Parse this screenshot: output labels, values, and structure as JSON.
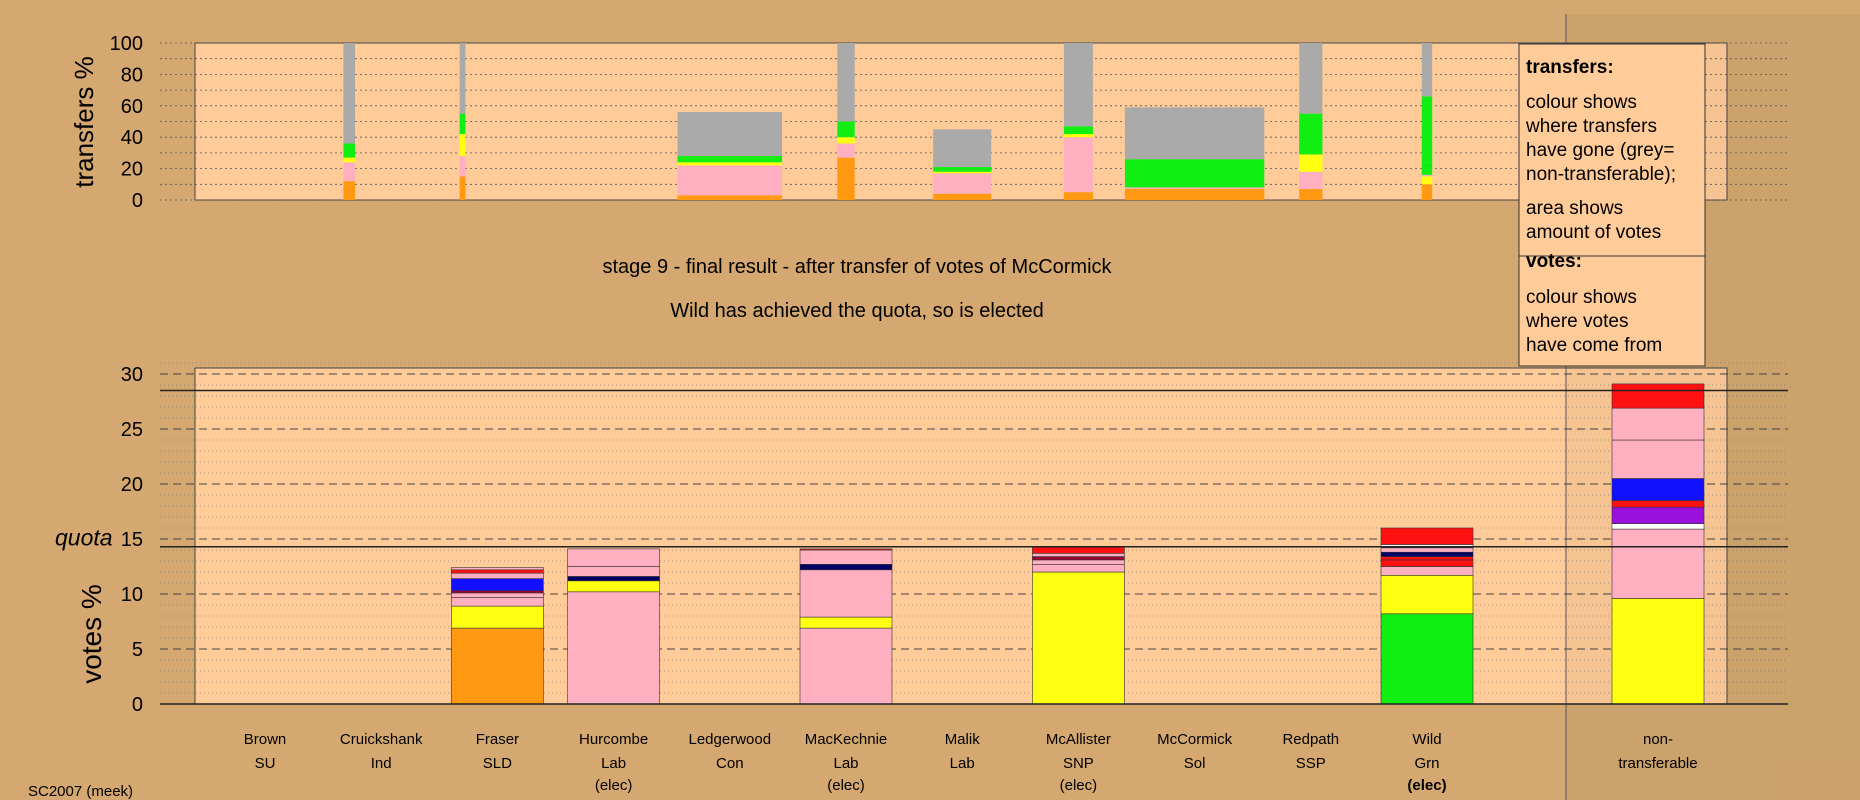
{
  "footer_id": "SC2007 (meek)",
  "stage_title": "stage 9 - final result - after transfer of votes of McCormick",
  "stage_subtitle": "Wild has achieved the quota, so is elected",
  "colors": {
    "background": "#d4a870",
    "plot_area": "#ffcc99",
    "non_transferable": "#aaaaaa",
    "orange": "#ff9911",
    "yellow": "#ffff11",
    "pink": "#ffb0c0",
    "green": "#11ee11",
    "blue": "#1111ff",
    "navy": "#000066",
    "red": "#ff1111",
    "purple": "#9911dd",
    "white": "#ffffff",
    "dark_red": "#990033"
  },
  "legend": {
    "transfers_heading": "transfers:",
    "transfers_text": [
      "colour shows",
      "where transfers",
      "have gone (grey=",
      "non-transferable);"
    ],
    "area_text": [
      "area shows",
      "amount of votes"
    ],
    "votes_heading": "votes:",
    "votes_text": [
      "colour shows",
      "where votes",
      "have come from"
    ]
  },
  "candidates": [
    {
      "name": "Brown",
      "party": "SU",
      "status": ""
    },
    {
      "name": "Cruickshank",
      "party": "Ind",
      "status": ""
    },
    {
      "name": "Fraser",
      "party": "SLD",
      "status": ""
    },
    {
      "name": "Hurcombe",
      "party": "Lab",
      "status": "(elec)"
    },
    {
      "name": "Ledgerwood",
      "party": "Con",
      "status": ""
    },
    {
      "name": "MacKechnie",
      "party": "Lab",
      "status": "(elec)"
    },
    {
      "name": "Malik",
      "party": "Lab",
      "status": ""
    },
    {
      "name": "McAllister",
      "party": "SNP",
      "status": "(elec)"
    },
    {
      "name": "McCormick",
      "party": "Sol",
      "status": ""
    },
    {
      "name": "Redpath",
      "party": "SSP",
      "status": ""
    },
    {
      "name": "Wild",
      "party": "Grn",
      "status": "(elec)",
      "status_bold": true
    },
    {
      "name": "non-",
      "party": "transferable",
      "status": ""
    }
  ],
  "chart_data": [
    {
      "type": "bar",
      "ylabel": "transfers %",
      "ylim": [
        0,
        100
      ],
      "yticks": [
        0,
        20,
        40,
        60,
        80,
        100
      ],
      "bars": [
        {
          "candidate": "Brown",
          "x": [
            0.675,
            0.775
          ],
          "segments": [
            {
              "c": "orange",
              "v": 12
            },
            {
              "c": "pink",
              "v": 12
            },
            {
              "c": "yellow",
              "v": 3
            },
            {
              "c": "green",
              "v": 9
            },
            {
              "c": "non_transferable",
              "v": 64
            }
          ]
        },
        {
          "candidate": "Cruickshank",
          "x": [
            1.675,
            1.725
          ],
          "segments": [
            {
              "c": "orange",
              "v": 15
            },
            {
              "c": "pink",
              "v": 13
            },
            {
              "c": "yellow",
              "v": 14
            },
            {
              "c": "green",
              "v": 13
            },
            {
              "c": "non_transferable",
              "v": 45
            }
          ]
        },
        {
          "candidate": "Hurcombe",
          "x": [
            3.55,
            4.45
          ],
          "segments": [
            {
              "c": "orange",
              "v": 3
            },
            {
              "c": "pink",
              "v": 19
            },
            {
              "c": "yellow",
              "v": 2
            },
            {
              "c": "green",
              "v": 4
            },
            {
              "c": "non_transferable",
              "v": 28
            }
          ]
        },
        {
          "candidate": "Ledgerwood",
          "x": [
            4.925,
            5.075
          ],
          "segments": [
            {
              "c": "orange",
              "v": 27
            },
            {
              "c": "pink",
              "v": 9
            },
            {
              "c": "yellow",
              "v": 4
            },
            {
              "c": "green",
              "v": 10
            },
            {
              "c": "non_transferable",
              "v": 50
            }
          ]
        },
        {
          "candidate": "MacKechnie",
          "x": [
            5.75,
            6.25
          ],
          "segments": [
            {
              "c": "orange",
              "v": 4
            },
            {
              "c": "pink",
              "v": 13
            },
            {
              "c": "yellow",
              "v": 1
            },
            {
              "c": "green",
              "v": 3
            },
            {
              "c": "non_transferable",
              "v": 24
            }
          ]
        },
        {
          "candidate": "Malik",
          "x": [
            6.875,
            7.125
          ],
          "segments": [
            {
              "c": "orange",
              "v": 5
            },
            {
              "c": "pink",
              "v": 35
            },
            {
              "c": "yellow",
              "v": 2
            },
            {
              "c": "green",
              "v": 5
            },
            {
              "c": "non_transferable",
              "v": 53
            }
          ]
        },
        {
          "candidate": "McAllister",
          "x": [
            7.4,
            8.6
          ],
          "segments": [
            {
              "c": "orange",
              "v": 7
            },
            {
              "c": "pink",
              "v": 1
            },
            {
              "c": "green",
              "v": 18
            },
            {
              "c": "non_transferable",
              "v": 33
            }
          ]
        },
        {
          "candidate": "McCormick",
          "x": [
            8.9,
            9.1
          ],
          "segments": [
            {
              "c": "orange",
              "v": 7
            },
            {
              "c": "pink",
              "v": 11
            },
            {
              "c": "yellow",
              "v": 11
            },
            {
              "c": "green",
              "v": 26
            },
            {
              "c": "non_transferable",
              "v": 45
            }
          ]
        },
        {
          "candidate": "Redpath",
          "x": [
            9.955,
            10.045
          ],
          "segments": [
            {
              "c": "orange",
              "v": 10
            },
            {
              "c": "yellow",
              "v": 5
            },
            {
              "c": "pink",
              "v": 1
            },
            {
              "c": "green",
              "v": 8
            },
            {
              "c": "green",
              "v": 42
            },
            {
              "c": "non_transferable",
              "v": 34
            }
          ]
        }
      ]
    },
    {
      "type": "bar",
      "ylabel": "votes %",
      "quota_label": "quota",
      "quota": 14.3,
      "ylim": [
        0,
        30
      ],
      "yticks": [
        0,
        5,
        10,
        15,
        20,
        25,
        30
      ],
      "extra_line": 28.5,
      "bars": [
        {
          "candidate": "Fraser",
          "segments": [
            {
              "c": "orange",
              "v": 6.9
            },
            {
              "c": "yellow",
              "v": 2.0
            },
            {
              "c": "pink",
              "v": 0.8
            },
            {
              "c": "pink",
              "v": 0.4
            },
            {
              "c": "dark_red",
              "v": 0.2
            },
            {
              "c": "blue",
              "v": 1.1
            },
            {
              "c": "pink",
              "v": 0.5
            },
            {
              "c": "red",
              "v": 0.3
            },
            {
              "c": "pink",
              "v": 0.2
            }
          ]
        },
        {
          "candidate": "Hurcombe",
          "segments": [
            {
              "c": "pink",
              "v": 10.2
            },
            {
              "c": "yellow",
              "v": 1.0
            },
            {
              "c": "navy",
              "v": 0.4
            },
            {
              "c": "pink",
              "v": 0.9
            },
            {
              "c": "pink",
              "v": 1.6
            }
          ]
        },
        {
          "candidate": "MacKechnie",
          "segments": [
            {
              "c": "pink",
              "v": 6.9
            },
            {
              "c": "yellow",
              "v": 1.0
            },
            {
              "c": "pink",
              "v": 4.3
            },
            {
              "c": "navy",
              "v": 0.5
            },
            {
              "c": "pink",
              "v": 1.3
            },
            {
              "c": "red",
              "v": 0.1
            }
          ]
        },
        {
          "candidate": "McAllister",
          "segments": [
            {
              "c": "yellow",
              "v": 12.0
            },
            {
              "c": "pink",
              "v": 0.7
            },
            {
              "c": "pink",
              "v": 0.4
            },
            {
              "c": "dark_red",
              "v": 0.3
            },
            {
              "c": "pink",
              "v": 0.3
            },
            {
              "c": "red",
              "v": 0.6
            }
          ]
        },
        {
          "candidate": "Wild",
          "segments": [
            {
              "c": "green",
              "v": 8.2
            },
            {
              "c": "yellow",
              "v": 3.5
            },
            {
              "c": "pink",
              "v": 0.8
            },
            {
              "c": "red",
              "v": 0.6
            },
            {
              "c": "red",
              "v": 0.3
            },
            {
              "c": "navy",
              "v": 0.4
            },
            {
              "c": "pink",
              "v": 0.4
            },
            {
              "c": "white",
              "v": 0.3
            },
            {
              "c": "red",
              "v": 1.5
            }
          ]
        },
        {
          "candidate": "non-transferable",
          "segments": [
            {
              "c": "yellow",
              "v": 9.6
            },
            {
              "c": "pink",
              "v": 6.3
            },
            {
              "c": "white",
              "v": 0.5
            },
            {
              "c": "purple",
              "v": 1.5
            },
            {
              "c": "red",
              "v": 0.6
            },
            {
              "c": "blue",
              "v": 2.0
            },
            {
              "c": "pink",
              "v": 3.5
            },
            {
              "c": "pink",
              "v": 2.9
            },
            {
              "c": "red",
              "v": 2.2
            }
          ]
        }
      ]
    }
  ]
}
